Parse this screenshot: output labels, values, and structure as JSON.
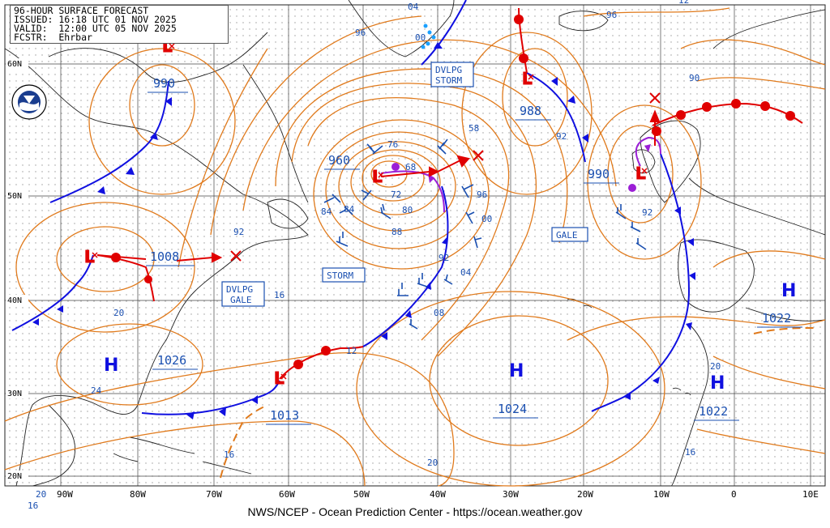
{
  "header": {
    "title": "96-HOUR SURFACE FORECAST",
    "issued": "ISSUED: 16:18 UTC 01 NOV 2025",
    "valid": "VALID:  12:00 UTC 05 NOV 2025",
    "forecaster": "FCSTR:  Ehrbar"
  },
  "footer": {
    "credit": "NWS/NCEP - Ocean Prediction Center - https://ocean.weather.gov"
  },
  "logo": {
    "icon": "noaa-logo-icon"
  },
  "colors": {
    "isobar": "#e07a1c",
    "cold_front": "#1010e0",
    "warm_front": "#e00000",
    "occluded_front": "#9b1fd6",
    "low": "#e00000",
    "high": "#1010e0",
    "label": "#1a4fb0",
    "grid": "#333333"
  },
  "lat_labels": [
    "60N",
    "50N",
    "40N",
    "30N",
    "20N"
  ],
  "lon_labels": [
    "90W",
    "80W",
    "70W",
    "60W",
    "50W",
    "40W",
    "30W",
    "20W",
    "10W",
    "0",
    "10E"
  ],
  "pressure_centers": [
    {
      "type": "L",
      "value": "990"
    },
    {
      "type": "L",
      "value": "1008"
    },
    {
      "type": "L",
      "value": "960"
    },
    {
      "type": "L",
      "value": "1013"
    },
    {
      "type": "L",
      "value": "988"
    },
    {
      "type": "L",
      "value": "990"
    },
    {
      "type": "H",
      "value": "1026"
    },
    {
      "type": "H",
      "value": "1024"
    },
    {
      "type": "H",
      "value": "1022"
    },
    {
      "type": "H",
      "value": "1022"
    }
  ],
  "isobar_labels": [
    "04",
    "00",
    "96",
    "96",
    "92",
    "76",
    "68",
    "72",
    "84",
    "80",
    "88",
    "92",
    "96",
    "00",
    "04",
    "08",
    "12",
    "16",
    "20",
    "24",
    "20",
    "16",
    "20",
    "16",
    "20",
    "92",
    "90",
    "92",
    "58",
    "16",
    "12",
    "84"
  ],
  "warning_labels": [
    {
      "text": [
        "DVLPG",
        "STORM"
      ]
    },
    {
      "text": [
        "STORM"
      ]
    },
    {
      "text": [
        "GALE"
      ]
    },
    {
      "text": [
        "DVLPG",
        "GALE"
      ]
    }
  ]
}
